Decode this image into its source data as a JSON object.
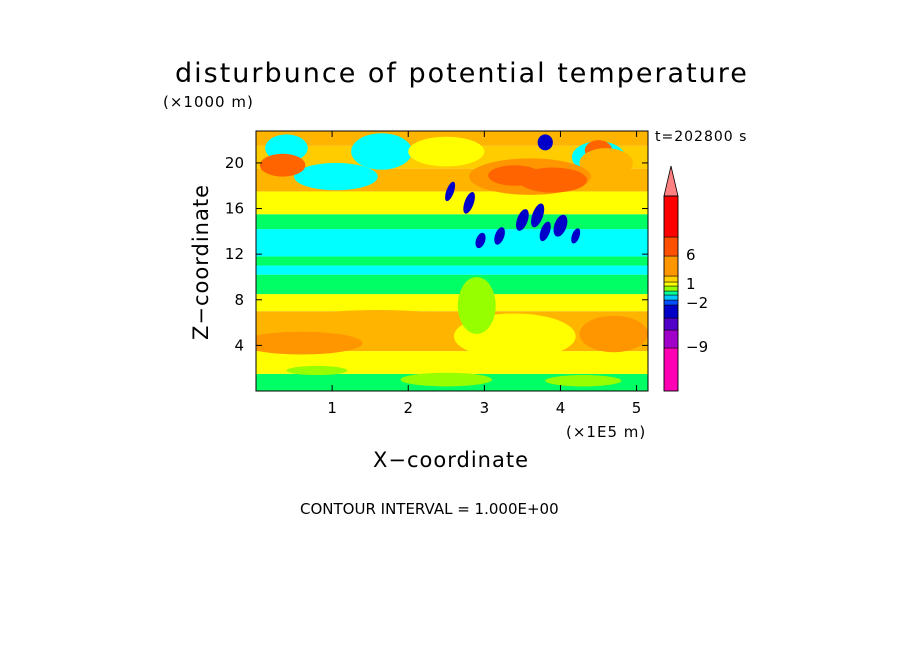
{
  "chart_data": {
    "type": "heatmap",
    "title": "disturbunce of potential temperature",
    "y_unit_label": "(×1000 m)",
    "x_unit_label": "(×1E5 m)",
    "xlabel": "X−coordinate",
    "ylabel": "Z−coordinate",
    "time_label": "t=202800 s",
    "footer": "CONTOUR INTERVAL = 1.000E+00",
    "x_range": [
      0,
      5.15
    ],
    "y_range": [
      0,
      22.8
    ],
    "x_ticks": [
      1,
      2,
      3,
      4,
      5
    ],
    "y_ticks": [
      4,
      8,
      12,
      16,
      20
    ],
    "colorbar": {
      "labels": [
        {
          "value": 6,
          "text": "6"
        },
        {
          "value": 1,
          "text": "1"
        },
        {
          "value": -2,
          "text": "−2"
        },
        {
          "value": -9,
          "text": "−9"
        }
      ],
      "colors": [
        "#ff00b4",
        "#a000c8",
        "#5000c8",
        "#0000c8",
        "#0050ff",
        "#00c8ff",
        "#00ff96",
        "#96ff00",
        "#ffff00",
        "#ffd200",
        "#ff9600",
        "#ff5000",
        "#ff0000",
        "#ff8080"
      ]
    },
    "field": {
      "description_levels": "nominal contour level per band, bottom to top",
      "horizontal_bands": [
        {
          "z": [
            0,
            1.5
          ],
          "level": -1
        },
        {
          "z": [
            1.5,
            3.5
          ],
          "level": 1
        },
        {
          "z": [
            3.5,
            7
          ],
          "level": 3
        },
        {
          "z": [
            7,
            8.5
          ],
          "level": 1
        },
        {
          "z": [
            8.5,
            10.2
          ],
          "level": -1
        },
        {
          "z": [
            10.2,
            11
          ],
          "level": -2
        },
        {
          "z": [
            11,
            11.8
          ],
          "level": -1
        },
        {
          "z": [
            11.8,
            14.2
          ],
          "level": -2
        },
        {
          "z": [
            14.2,
            15.5
          ],
          "level": -1
        },
        {
          "z": [
            15.5,
            17.5
          ],
          "level": 1
        },
        {
          "z": [
            17.5,
            19.5
          ],
          "level": 3
        },
        {
          "z": [
            19.5,
            21.5
          ],
          "level": 2
        },
        {
          "z": [
            21.5,
            22.8
          ],
          "level": 3
        }
      ]
    }
  }
}
